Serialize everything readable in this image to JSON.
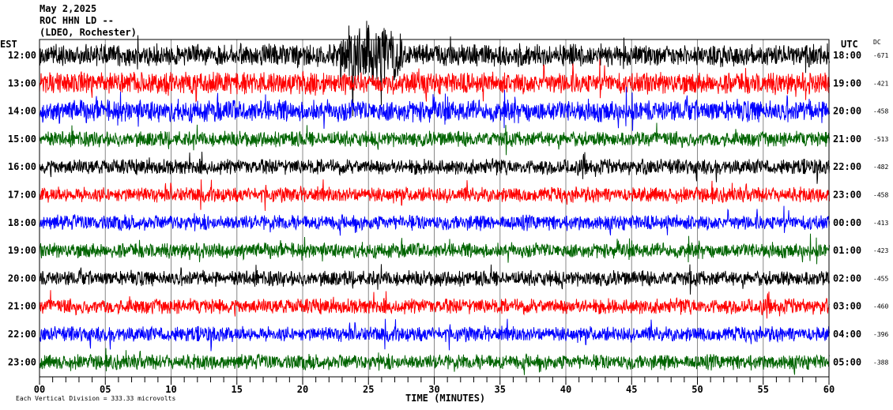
{
  "header": {
    "date": "May 2,2025",
    "station": "ROC HHN LD --",
    "network": "(LDEO, Rochester)"
  },
  "chart_data": {
    "type": "line",
    "title": "",
    "xlabel": "TIME (MINUTES)",
    "xlim": [
      0,
      60
    ],
    "x_tick_labels": [
      "00",
      "05",
      "10",
      "15",
      "20",
      "25",
      "30",
      "35",
      "40",
      "45",
      "50",
      "55",
      "60"
    ],
    "left_axis_label": "EST",
    "right_axis_label": "UTC",
    "dc_label": "DC",
    "grid": "vertical every 5 minutes",
    "rows": [
      {
        "est": "12:00",
        "utc": "18:00",
        "dc": "-671",
        "color": "#000000"
      },
      {
        "est": "13:00",
        "utc": "19:00",
        "dc": "-421",
        "color": "#ff0000"
      },
      {
        "est": "14:00",
        "utc": "20:00",
        "dc": "-458",
        "color": "#0000ff"
      },
      {
        "est": "15:00",
        "utc": "21:00",
        "dc": "-513",
        "color": "#006400"
      },
      {
        "est": "16:00",
        "utc": "22:00",
        "dc": "-482",
        "color": "#000000"
      },
      {
        "est": "17:00",
        "utc": "23:00",
        "dc": "-458",
        "color": "#ff0000"
      },
      {
        "est": "18:00",
        "utc": "00:00",
        "dc": "-413",
        "color": "#0000ff"
      },
      {
        "est": "19:00",
        "utc": "01:00",
        "dc": "-423",
        "color": "#006400"
      },
      {
        "est": "20:00",
        "utc": "02:00",
        "dc": "-455",
        "color": "#000000"
      },
      {
        "est": "21:00",
        "utc": "03:00",
        "dc": "-460",
        "color": "#ff0000"
      },
      {
        "est": "22:00",
        "utc": "04:00",
        "dc": "-396",
        "color": "#0000ff"
      },
      {
        "est": "23:00",
        "utc": "05:00",
        "dc": "-388",
        "color": "#006400"
      }
    ]
  },
  "footer": {
    "scale_text": "Each Vertical Division =  333.33 microvolts"
  }
}
